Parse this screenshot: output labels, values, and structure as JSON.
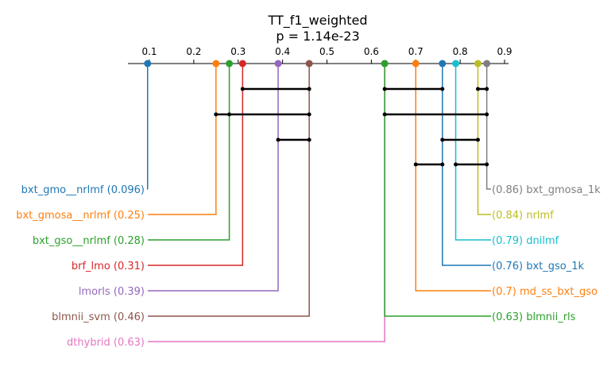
{
  "chart_data": {
    "type": "critical-difference",
    "title": "TT_f1_weighted",
    "subtitle": "p = 1.14e-23",
    "axis": {
      "range": [
        0.05,
        0.92
      ],
      "ticks": [
        0.1,
        0.2,
        0.3,
        0.4,
        0.5,
        0.6,
        0.7,
        0.8,
        0.9
      ],
      "tick_labels": [
        "0.1",
        "0.2",
        "0.3",
        "0.4",
        "0.5",
        "0.6",
        "0.7",
        "0.8",
        "0.9"
      ]
    },
    "methods": [
      {
        "name": "bxt_gmo__nrlmf",
        "value": 0.096,
        "label": "bxt_gmo__nrlmf (0.096)",
        "side": "left",
        "color": "#1f77b4"
      },
      {
        "name": "bxt_gmosa__nrlmf",
        "value": 0.25,
        "label": "bxt_gmosa__nrlmf (0.25)",
        "side": "left",
        "color": "#ff7f0e"
      },
      {
        "name": "bxt_gso__nrlmf",
        "value": 0.28,
        "label": "bxt_gso__nrlmf (0.28)",
        "side": "left",
        "color": "#2ca02c"
      },
      {
        "name": "brf_lmo",
        "value": 0.31,
        "label": "brf_lmo (0.31)",
        "side": "left",
        "color": "#d62728"
      },
      {
        "name": "lmorls",
        "value": 0.39,
        "label": "lmorls (0.39)",
        "side": "left",
        "color": "#9467bd"
      },
      {
        "name": "blmnii_svm",
        "value": 0.46,
        "label": "blmnii_svm (0.46)",
        "side": "left",
        "color": "#8c564b"
      },
      {
        "name": "dthybrid",
        "value": 0.63,
        "label": "dthybrid (0.63)",
        "side": "left",
        "color": "#e377c2"
      },
      {
        "name": "bxt_gmosa_1k",
        "value": 0.86,
        "label": "(0.86) bxt_gmosa_1k",
        "side": "right",
        "color": "#7f7f7f"
      },
      {
        "name": "nrlmf",
        "value": 0.84,
        "label": "(0.84) nrlmf",
        "side": "right",
        "color": "#bcbd22"
      },
      {
        "name": "dnilmf",
        "value": 0.79,
        "label": "(0.79) dnilmf",
        "side": "right",
        "color": "#17becf"
      },
      {
        "name": "bxt_gso_1k",
        "value": 0.76,
        "label": "(0.76) bxt_gso_1k",
        "side": "right",
        "color": "#1f77b4"
      },
      {
        "name": "md_ss_bxt_gso",
        "value": 0.7,
        "label": "(0.7) md_ss_bxt_gso",
        "side": "right",
        "color": "#ff7f0e"
      },
      {
        "name": "blmnii_rls",
        "value": 0.63,
        "label": "(0.63) blmnii_rls",
        "side": "right",
        "color": "#2ca02c"
      }
    ],
    "cliques": [
      {
        "from": 0.31,
        "to": 0.46,
        "points": [
          0.31,
          0.46
        ]
      },
      {
        "from": 0.25,
        "to": 0.46,
        "points": [
          0.25,
          0.28,
          0.46
        ]
      },
      {
        "from": 0.39,
        "to": 0.46,
        "points": [
          0.39,
          0.46
        ]
      },
      {
        "from": 0.63,
        "to": 0.76,
        "points": [
          0.63,
          0.76
        ]
      },
      {
        "from": 0.84,
        "to": 0.86,
        "points": [
          0.84,
          0.86
        ]
      },
      {
        "from": 0.63,
        "to": 0.86,
        "points": [
          0.63,
          0.86
        ]
      },
      {
        "from": 0.76,
        "to": 0.84,
        "points": [
          0.76,
          0.84
        ]
      },
      {
        "from": 0.7,
        "to": 0.76,
        "points": [
          0.7,
          0.76
        ]
      },
      {
        "from": 0.79,
        "to": 0.86,
        "points": [
          0.79,
          0.86
        ]
      }
    ]
  }
}
